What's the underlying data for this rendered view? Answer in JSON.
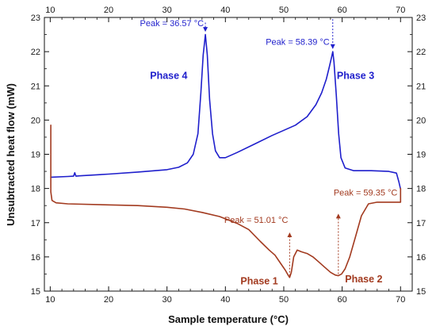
{
  "chart_data": {
    "type": "line",
    "xlabel": "Sample temperature (°C)",
    "ylabel": "Unsubtracted heat flow (mW)",
    "xlim": [
      9,
      72
    ],
    "ylim": [
      15,
      23
    ],
    "xticks": [
      10,
      20,
      30,
      40,
      50,
      60,
      70
    ],
    "yticks": [
      15,
      16,
      17,
      18,
      19,
      20,
      21,
      22,
      23
    ],
    "grid": false,
    "axes_mirrored": "top-and-right",
    "series": [
      {
        "color": "#1f1fcc",
        "x": [
          10.1,
          13.0,
          14.0,
          14.2,
          14.4,
          15.0,
          20.0,
          25.0,
          30.0,
          32.0,
          33.5,
          34.5,
          35.3,
          35.8,
          36.2,
          36.57,
          36.9,
          37.3,
          37.8,
          38.3,
          39.0,
          40.0,
          42.0,
          45.0,
          48.0,
          50.0,
          52.0,
          54.0,
          55.5,
          56.5,
          57.3,
          57.8,
          58.2,
          58.39,
          58.6,
          59.0,
          59.4,
          59.8,
          60.5,
          62.0,
          65.0,
          68.0,
          69.3,
          69.7,
          70.0
        ],
        "y": [
          18.33,
          18.35,
          18.36,
          18.46,
          18.36,
          18.37,
          18.42,
          18.48,
          18.55,
          18.62,
          18.75,
          19.0,
          19.6,
          20.8,
          21.9,
          22.5,
          21.9,
          20.6,
          19.6,
          19.1,
          18.9,
          18.9,
          19.05,
          19.3,
          19.55,
          19.7,
          19.85,
          20.1,
          20.45,
          20.8,
          21.2,
          21.55,
          21.85,
          22.0,
          21.7,
          20.7,
          19.6,
          18.9,
          18.6,
          18.52,
          18.52,
          18.5,
          18.45,
          18.2,
          17.98
        ]
      },
      {
        "color": "#a23a1f",
        "x": [
          10.1,
          10.1,
          10.3,
          11.0,
          13.0,
          20.0,
          25.0,
          30.0,
          33.0,
          36.0,
          39.0,
          42.0,
          44.0,
          46.0,
          47.5,
          48.5,
          49.5,
          50.3,
          50.8,
          51.01,
          51.3,
          51.7,
          52.3,
          53.0,
          54.0,
          55.0,
          56.0,
          57.0,
          58.0,
          58.8,
          59.35,
          59.9,
          60.5,
          61.3,
          62.3,
          63.3,
          64.5,
          66.0,
          68.0,
          70.0,
          70.0
        ],
        "y": [
          19.85,
          17.9,
          17.65,
          17.58,
          17.55,
          17.52,
          17.5,
          17.45,
          17.4,
          17.3,
          17.18,
          16.98,
          16.8,
          16.45,
          16.2,
          16.05,
          15.8,
          15.6,
          15.45,
          15.4,
          15.55,
          16.0,
          16.2,
          16.15,
          16.1,
          16.0,
          15.85,
          15.7,
          15.55,
          15.47,
          15.45,
          15.5,
          15.65,
          16.0,
          16.6,
          17.2,
          17.55,
          17.6,
          17.6,
          17.6,
          18.0
        ]
      }
    ],
    "annotations": [
      {
        "text": "Peak = 36.57 °C",
        "x": 36.57,
        "y": 22.5,
        "color": "#1f1fcc"
      },
      {
        "text": "Peak = 58.39 °C",
        "x": 58.39,
        "y": 22.0,
        "color": "#1f1fcc"
      },
      {
        "text": "Peak = 51.01 °C",
        "x": 51.01,
        "y": 15.4,
        "color": "#a23a1f"
      },
      {
        "text": "Peak = 59.35 °C",
        "x": 59.35,
        "y": 15.45,
        "color": "#a23a1f"
      }
    ],
    "phase_labels": [
      {
        "text": "Phase 4",
        "x": 30.3,
        "y": 21.2,
        "color": "#1f1fcc"
      },
      {
        "text": "Phase 3",
        "x": 62.3,
        "y": 21.2,
        "color": "#1f1fcc"
      },
      {
        "text": "Phase 1",
        "x": 45.8,
        "y": 15.2,
        "color": "#a23a1f"
      },
      {
        "text": "Phase 2",
        "x": 63.7,
        "y": 15.25,
        "color": "#a23a1f"
      }
    ]
  }
}
